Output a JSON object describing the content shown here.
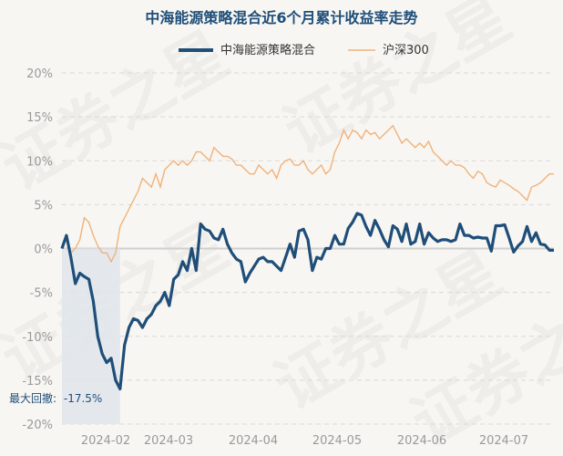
{
  "chart_data": {
    "type": "line",
    "title": "中海能源策略混合近6个月累计收益率走势",
    "xlabel": "",
    "ylabel": "",
    "ylim": [
      -20,
      20
    ],
    "yticks": [
      "20%",
      "15%",
      "10%",
      "5%",
      "0%",
      "-5%",
      "-10%",
      "-15%",
      "-20%"
    ],
    "x_ticks": [
      "2024-02",
      "2024-03",
      "2024-04",
      "2024-05",
      "2024-06",
      "2024-07"
    ],
    "watermark": "证券之星",
    "max_drawdown": {
      "label": "最大回撤:",
      "value": "-17.5%"
    },
    "series": [
      {
        "name": "中海能源策略混合",
        "color": "#1f4e79",
        "values": [
          0,
          1.5,
          -1,
          -4,
          -2.8,
          -3.2,
          -3.5,
          -6,
          -10,
          -12,
          -13,
          -12.5,
          -15,
          -16,
          -11,
          -9,
          -8,
          -8.2,
          -9,
          -8,
          -7.5,
          -6.5,
          -6,
          -5,
          -6.5,
          -3.5,
          -3,
          -1.5,
          -2.5,
          0,
          -2.5,
          2.8,
          2.2,
          2,
          1.2,
          1,
          2.2,
          0.5,
          -0.5,
          -1.2,
          -1.5,
          -3.8,
          -2.8,
          -2,
          -1.2,
          -1,
          -1.5,
          -1.5,
          -2,
          -2.5,
          -1,
          0.5,
          -1,
          2,
          2.2,
          1,
          -2.5,
          -1,
          -1.2,
          0,
          0,
          1.5,
          0.5,
          0.5,
          2.3,
          3,
          4,
          3.8,
          2.5,
          1.5,
          3.2,
          2.2,
          1,
          0.2,
          2.6,
          2.2,
          0.8,
          2.8,
          0.5,
          0.8,
          2.8,
          0.5,
          1.8,
          1.2,
          0.8,
          1,
          1,
          0.8,
          1,
          2.8,
          1.5,
          1.5,
          1.2,
          1.3,
          1.2,
          1.2,
          -0.3,
          2.6,
          2.6,
          2.7,
          1.2,
          -0.4,
          0.3,
          0.8,
          2.5,
          0.8,
          1.8,
          0.5,
          0.4,
          -0.2,
          -0.2
        ]
      },
      {
        "name": "沪深300",
        "color": "#f0b27a",
        "values": [
          0,
          1.2,
          -0.5,
          0,
          1,
          3.5,
          3,
          1.5,
          0.3,
          -0.5,
          -0.5,
          -1.5,
          -0.5,
          2.5,
          3.5,
          4.5,
          5.5,
          6.5,
          8,
          7.5,
          7,
          8.5,
          7,
          9,
          9.5,
          10,
          9.5,
          10,
          9.5,
          10,
          11,
          11,
          10.5,
          10,
          11.5,
          11,
          10.5,
          10.5,
          10.2,
          9.5,
          9.5,
          9,
          8.5,
          8.5,
          9.5,
          9,
          8.5,
          9,
          8,
          9.5,
          10,
          10.2,
          9.5,
          9.5,
          10,
          9,
          8.5,
          9,
          9.5,
          8.5,
          9,
          11,
          12,
          13.5,
          12.5,
          13.5,
          13.2,
          12.5,
          13.5,
          13,
          13.2,
          12.5,
          13,
          13.5,
          14,
          13,
          12,
          12.5,
          12,
          11.5,
          12,
          11.5,
          12.2,
          11,
          10.5,
          10,
          9.5,
          10,
          9.5,
          9.5,
          9.2,
          8.5,
          8,
          8.8,
          8.5,
          7.5,
          7.2,
          7,
          7.8,
          7.5,
          7.2,
          6.8,
          6.5,
          6,
          5.5,
          7,
          7.2,
          7.5,
          8,
          8.5,
          8.5
        ]
      }
    ]
  }
}
